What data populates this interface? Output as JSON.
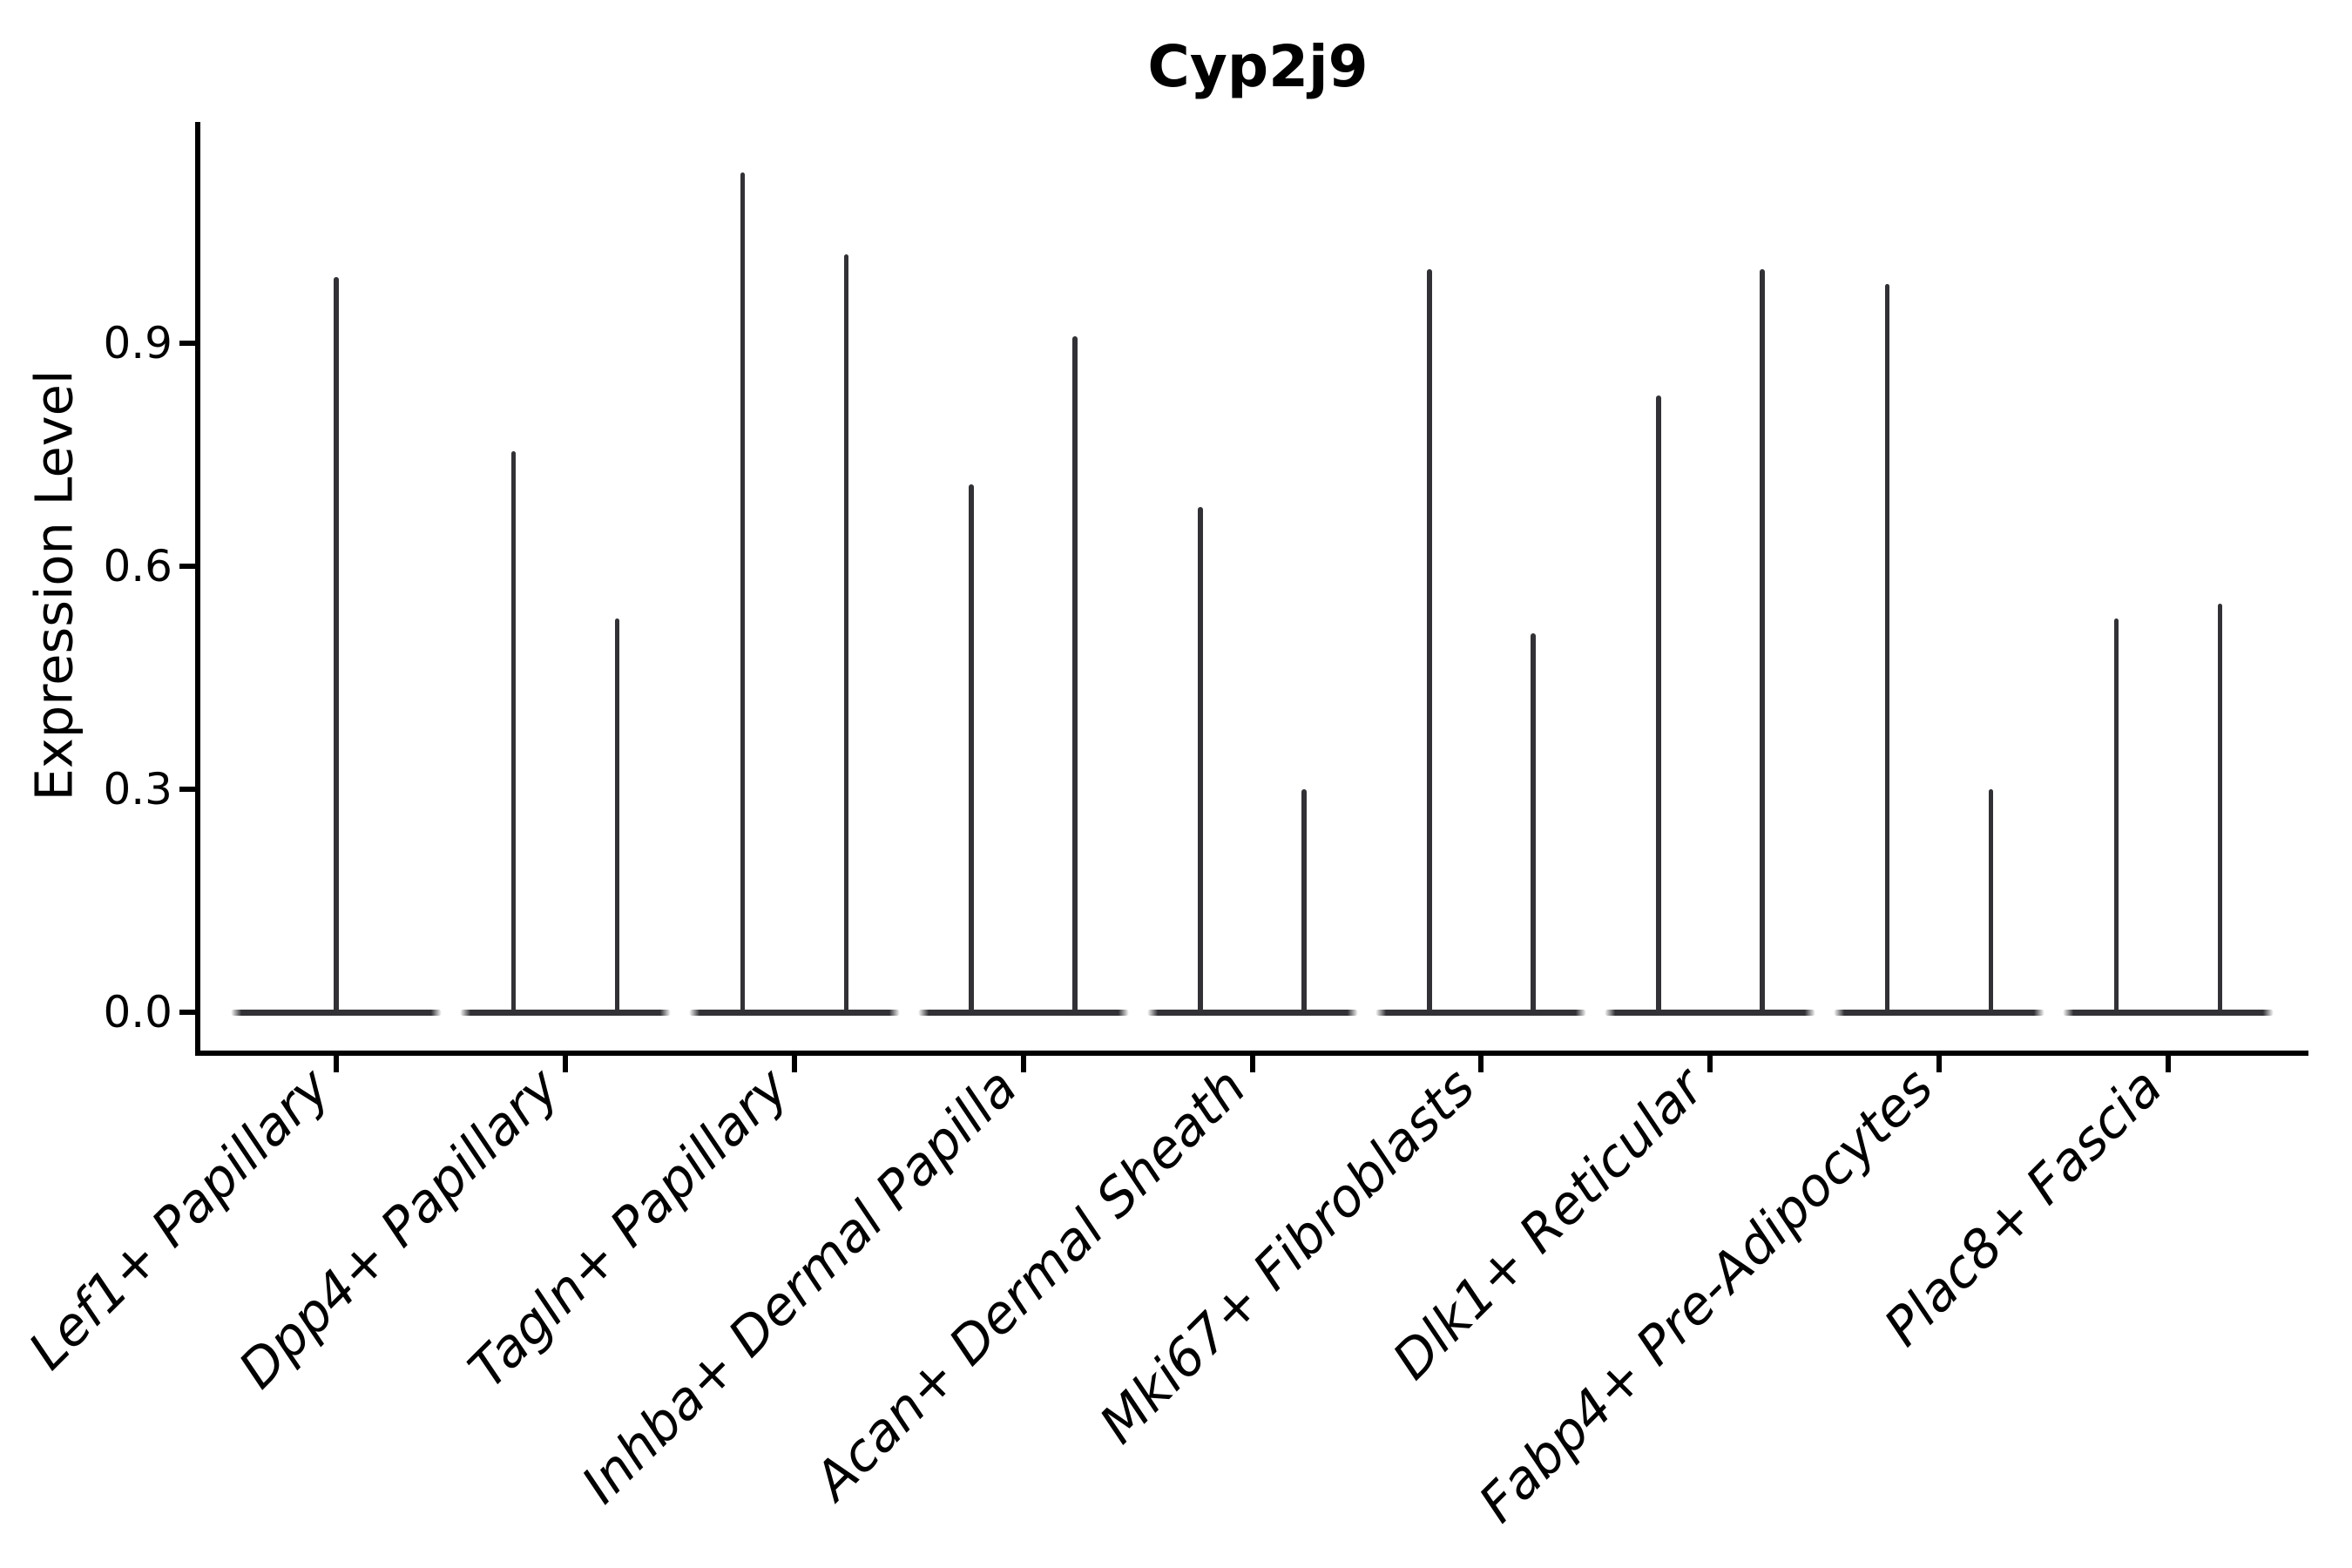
{
  "chart_data": {
    "type": "violin",
    "title": "Cyp2j9",
    "ylabel": "Expression Level",
    "xlabel": "",
    "grid": false,
    "legend_position": "none",
    "axis_range": {
      "y_min": -0.05,
      "y_max": 1.2
    },
    "yticks": [
      {
        "label": "0.0",
        "value": 0.0
      },
      {
        "label": "0.3",
        "value": 0.3
      },
      {
        "label": "0.6",
        "value": 0.6
      },
      {
        "label": "0.9",
        "value": 0.9
      }
    ],
    "categories": [
      "Lef1+ Papillary",
      "Dpp4+ Papillary",
      "Tagln+ Papillary",
      "Inhba+ Dermal Papilla",
      "Acan+ Dermal Sheath",
      "Mki67+ Fibroblasts",
      "Dlk1+ Reticular",
      "Fabp4+ Pre-Adipocytes",
      "Plac8+ Fascia"
    ],
    "violins": [
      {
        "category": "Lef1+ Papillary",
        "tail_peaks": [
          0.99
        ]
      },
      {
        "category": "Dpp4+ Papillary",
        "tail_peaks": [
          0.755,
          0.53
        ]
      },
      {
        "category": "Tagln+ Papillary",
        "tail_peaks": [
          1.13,
          1.02
        ]
      },
      {
        "category": "Inhba+ Dermal Papilla",
        "tail_peaks": [
          0.71,
          0.91
        ]
      },
      {
        "category": "Acan+ Dermal Sheath",
        "tail_peaks": [
          0.68,
          0.3
        ]
      },
      {
        "category": "Mki67+ Fibroblasts",
        "tail_peaks": [
          1.0,
          0.51
        ]
      },
      {
        "category": "Dlk1+ Reticular",
        "tail_peaks": [
          0.83,
          1.0
        ]
      },
      {
        "category": "Fabp4+ Pre-Adipocytes",
        "tail_peaks": [
          0.98,
          0.3
        ]
      },
      {
        "category": "Plac8+ Fascia",
        "tail_peaks": [
          0.53,
          0.55
        ]
      }
    ],
    "style": {
      "violin_color": "#323236",
      "axis_color": "#000000",
      "text_color": "#000000",
      "background": "#ffffff"
    }
  }
}
